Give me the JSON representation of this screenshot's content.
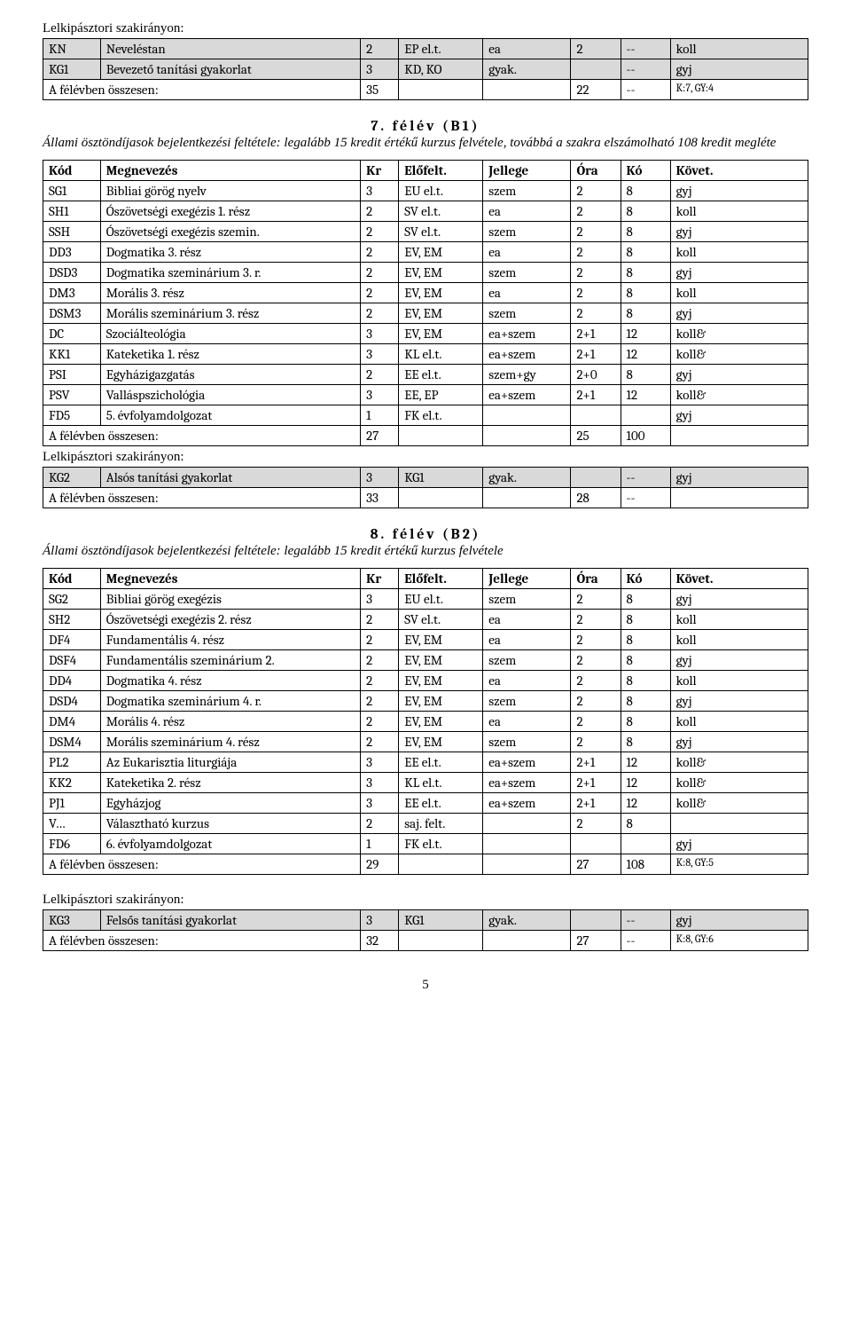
{
  "labels": {
    "szakirany": "Lelkipásztori szakirányon:",
    "osszesen": "A félévben összesen:",
    "pageNum": "5"
  },
  "col": {
    "kod": "Kód",
    "meg": "Megnevezés",
    "kr": "Kr",
    "elo": "Előfelt.",
    "jel": "Jellege",
    "ora": "Óra",
    "ko": "Kó",
    "kov": "Követ."
  },
  "sec1": {
    "r1": {
      "kod": "KN",
      "meg": "Neveléstan",
      "kr": "2",
      "elo": "EP el.t.",
      "jel": "ea",
      "ora": "2",
      "ko": "--",
      "kov": "koll"
    },
    "r2": {
      "kod": "KG1",
      "meg": "Bevezető tanítási gyakorlat",
      "kr": "3",
      "elo": "KD, KO",
      "jel": "gyak.",
      "ora": "",
      "ko": "--",
      "kov": "gyj"
    },
    "sum": {
      "kr": "35",
      "ora": "22",
      "ko": "--",
      "kov": "K:7, GY:4"
    }
  },
  "sec2": {
    "title": "7. félév (B1)",
    "note": "Állami ösztöndíjasok bejelentkezési feltétele: legalább 15 kredit értékű kurzus felvétele, továbbá a szakra elszámolható 108 kredit megléte",
    "rows": {
      "r1": {
        "kod": "SG1",
        "meg": "Bibliai görög nyelv",
        "kr": "3",
        "elo": "EU el.t.",
        "jel": "szem",
        "ora": "2",
        "ko": "8",
        "kov": "gyj"
      },
      "r2": {
        "kod": "SH1",
        "meg": "Ószövetségi exegézis 1. rész",
        "kr": "2",
        "elo": "SV el.t.",
        "jel": "ea",
        "ora": "2",
        "ko": "8",
        "kov": "koll"
      },
      "r3": {
        "kod": "SSH",
        "meg": "Ószövetségi exegézis szemin.",
        "kr": "2",
        "elo": "SV el.t.",
        "jel": "szem",
        "ora": "2",
        "ko": "8",
        "kov": "gyj"
      },
      "r4": {
        "kod": "DD3",
        "meg": "Dogmatika 3. rész",
        "kr": "2",
        "elo": "EV, EM",
        "jel": "ea",
        "ora": "2",
        "ko": "8",
        "kov": "koll"
      },
      "r5": {
        "kod": "DSD3",
        "meg": "Dogmatika szeminárium 3. r.",
        "kr": "2",
        "elo": "EV, EM",
        "jel": "szem",
        "ora": "2",
        "ko": "8",
        "kov": "gyj"
      },
      "r6": {
        "kod": "DM3",
        "meg": "Morális 3. rész",
        "kr": "2",
        "elo": "EV, EM",
        "jel": "ea",
        "ora": "2",
        "ko": "8",
        "kov": "koll"
      },
      "r7": {
        "kod": "DSM3",
        "meg": "Morális szeminárium 3. rész",
        "kr": "2",
        "elo": "EV, EM",
        "jel": "szem",
        "ora": "2",
        "ko": "8",
        "kov": "gyj"
      },
      "r8": {
        "kod": "DC",
        "meg": "Szociálteológia",
        "kr": "3",
        "elo": "EV, EM",
        "jel": "ea+szem",
        "ora": "2+1",
        "ko": "12",
        "kov": "koll&"
      },
      "r9": {
        "kod": "KK1",
        "meg": "Kateketika 1. rész",
        "kr": "3",
        "elo": "KL el.t.",
        "jel": "ea+szem",
        "ora": "2+1",
        "ko": "12",
        "kov": "koll&"
      },
      "r10": {
        "kod": "PSI",
        "meg": "Egyházigazgatás",
        "kr": "2",
        "elo": "EE el.t.",
        "jel": "szem+gy",
        "ora": "2+0",
        "ko": "8",
        "kov": "gyj"
      },
      "r11": {
        "kod": "PSV",
        "meg": "Valláspszichológia",
        "kr": "3",
        "elo": "EE, EP",
        "jel": "ea+szem",
        "ora": "2+1",
        "ko": "12",
        "kov": "koll&"
      },
      "r12": {
        "kod": "FD5",
        "meg": "5. évfolyamdolgozat",
        "kr": "1",
        "elo": "FK el.t.",
        "jel": "",
        "ora": "",
        "ko": "",
        "kov": "gyj"
      }
    },
    "sum": {
      "kr": "27",
      "ora": "25",
      "ko": "100",
      "kov": ""
    }
  },
  "sec2b": {
    "r1": {
      "kod": "KG2",
      "meg": "Alsós tanítási gyakorlat",
      "kr": "3",
      "elo": "KG1",
      "jel": "gyak.",
      "ora": "",
      "ko": "--",
      "kov": "gyj"
    },
    "sum": {
      "kr": "33",
      "ora": "28",
      "ko": "--",
      "kov": ""
    }
  },
  "sec3": {
    "title": "8. félév (B2)",
    "note": "Állami ösztöndíjasok bejelentkezési feltétele: legalább 15 kredit értékű kurzus felvétele",
    "rows": {
      "r1": {
        "kod": "SG2",
        "meg": "Bibliai görög exegézis",
        "kr": "3",
        "elo": "EU el.t.",
        "jel": "szem",
        "ora": "2",
        "ko": "8",
        "kov": "gyj"
      },
      "r2": {
        "kod": "SH2",
        "meg": "Ószövetségi exegézis 2. rész",
        "kr": "2",
        "elo": "SV el.t.",
        "jel": "ea",
        "ora": "2",
        "ko": "8",
        "kov": "koll"
      },
      "r3": {
        "kod": "DF4",
        "meg": "Fundamentális 4. rész",
        "kr": "2",
        "elo": "EV, EM",
        "jel": "ea",
        "ora": "2",
        "ko": "8",
        "kov": "koll"
      },
      "r4": {
        "kod": "DSF4",
        "meg": "Fundamentális szeminárium 2.",
        "kr": "2",
        "elo": "EV, EM",
        "jel": "szem",
        "ora": "2",
        "ko": "8",
        "kov": "gyj"
      },
      "r5": {
        "kod": "DD4",
        "meg": "Dogmatika 4. rész",
        "kr": "2",
        "elo": "EV, EM",
        "jel": "ea",
        "ora": "2",
        "ko": "8",
        "kov": "koll"
      },
      "r6": {
        "kod": "DSD4",
        "meg": "Dogmatika szeminárium 4. r.",
        "kr": "2",
        "elo": "EV, EM",
        "jel": "szem",
        "ora": "2",
        "ko": "8",
        "kov": "gyj"
      },
      "r7": {
        "kod": "DM4",
        "meg": "Morális 4. rész",
        "kr": "2",
        "elo": "EV, EM",
        "jel": "ea",
        "ora": "2",
        "ko": "8",
        "kov": "koll"
      },
      "r8": {
        "kod": "DSM4",
        "meg": "Morális szeminárium 4. rész",
        "kr": "2",
        "elo": "EV, EM",
        "jel": "szem",
        "ora": "2",
        "ko": "8",
        "kov": "gyj"
      },
      "r9": {
        "kod": "PL2",
        "meg": "Az Eukarisztia liturgiája",
        "kr": "3",
        "elo": "EE el.t.",
        "jel": "ea+szem",
        "ora": "2+1",
        "ko": "12",
        "kov": "koll&"
      },
      "r10": {
        "kod": "KK2",
        "meg": "Kateketika 2. rész",
        "kr": "3",
        "elo": "KL el.t.",
        "jel": "ea+szem",
        "ora": "2+1",
        "ko": "12",
        "kov": "koll&"
      },
      "r11": {
        "kod": "PJ1",
        "meg": "Egyházjog",
        "kr": "3",
        "elo": "EE el.t.",
        "jel": "ea+szem",
        "ora": "2+1",
        "ko": "12",
        "kov": "koll&"
      },
      "r12": {
        "kod": "V…",
        "meg": "Választható kurzus",
        "kr": "2",
        "elo": "saj. felt.",
        "jel": "",
        "ora": "2",
        "ko": "8",
        "kov": ""
      },
      "r13": {
        "kod": "FD6",
        "meg": "6. évfolyamdolgozat",
        "kr": "1",
        "elo": "FK el.t.",
        "jel": "",
        "ora": "",
        "ko": "",
        "kov": "gyj"
      }
    },
    "sum": {
      "kr": "29",
      "ora": "27",
      "ko": "108",
      "kov": "K:8, GY:5"
    }
  },
  "sec3b": {
    "r1": {
      "kod": "KG3",
      "meg": "Felsős tanítási gyakorlat",
      "kr": "3",
      "elo": "KG1",
      "jel": "gyak.",
      "ora": "",
      "ko": "--",
      "kov": "gyj"
    },
    "sum": {
      "kr": "32",
      "ora": "27",
      "ko": "--",
      "kov": "K:8, GY:6"
    }
  }
}
